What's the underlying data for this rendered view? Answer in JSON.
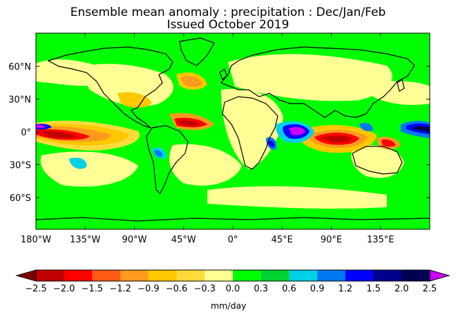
{
  "title": "Ensemble mean anomaly : precipitation : Dec/Jan/Feb",
  "subtitle": "Issued October 2019",
  "lon_ticks": [
    "180°W",
    "135°W",
    "90°W",
    "45°W",
    "0°",
    "45°E",
    "90°E",
    "135°E"
  ],
  "lat_ticks": [
    "60°N",
    "30°N",
    "0°",
    "30°S",
    "60°S"
  ],
  "colorbar": {
    "tick_labels": [
      "-2.5",
      "-2.0",
      "-1.5",
      "-1.2",
      "-0.9",
      "-0.6",
      "-0.3",
      "0.0",
      "0.3",
      "0.6",
      "0.9",
      "1.2",
      "1.5",
      "2.0",
      "2.5"
    ],
    "below_color": "#7a0000",
    "above_color": "#cc00ff",
    "colors": [
      "#c00000",
      "#ff0000",
      "#ff5a14",
      "#ff9a1e",
      "#ffc800",
      "#ffdc3c",
      "#ffff96",
      "#00ff00",
      "#00d232",
      "#00d2e6",
      "#0078f0",
      "#0000ff",
      "#00008c",
      "#000050"
    ],
    "units": "mm/day"
  }
}
